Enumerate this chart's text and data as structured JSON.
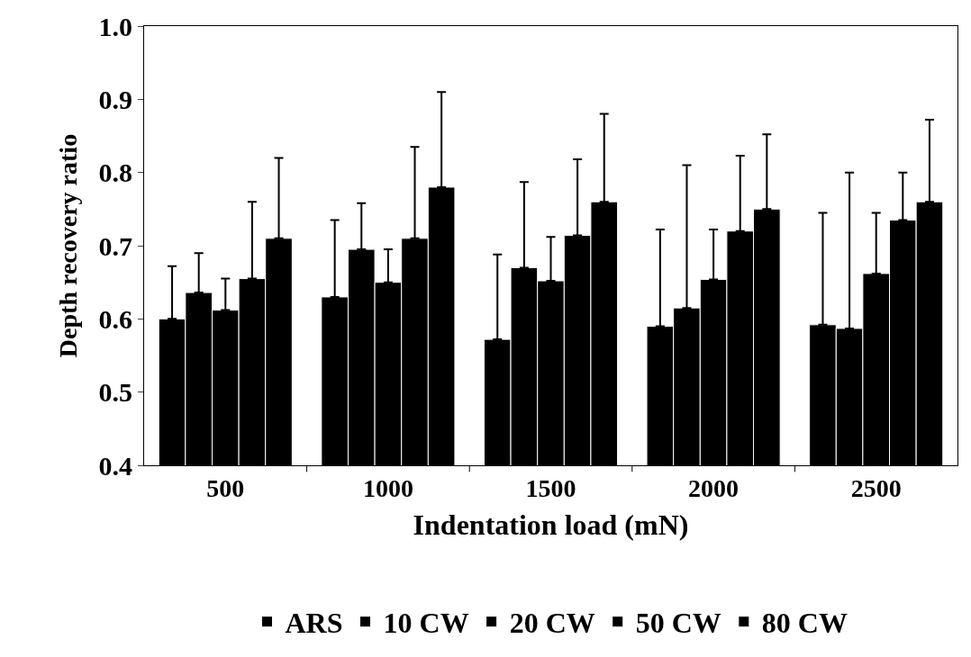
{
  "chart_data": {
    "type": "bar",
    "xlabel": "Indentation load (mN)",
    "ylabel": "Depth recovery ratio",
    "categories": [
      "500",
      "1000",
      "1500",
      "2000",
      "2500"
    ],
    "series": [
      {
        "name": "ARS",
        "color": "#000000",
        "values": [
          0.6,
          0.63,
          0.572,
          0.59,
          0.592
        ],
        "errors": [
          [
            0.6,
            0.672
          ],
          [
            0.63,
            0.735
          ],
          [
            0.572,
            0.688
          ],
          [
            0.59,
            0.722
          ],
          [
            0.592,
            0.745
          ]
        ]
      },
      {
        "name": "10 CW",
        "color": "#000000",
        "values": [
          0.636,
          0.695,
          0.67,
          0.615,
          0.587
        ],
        "errors": [
          [
            0.636,
            0.69
          ],
          [
            0.695,
            0.758
          ],
          [
            0.67,
            0.787
          ],
          [
            0.615,
            0.81
          ],
          [
            0.587,
            0.8
          ]
        ]
      },
      {
        "name": "20 CW",
        "color": "#000000",
        "values": [
          0.612,
          0.65,
          0.652,
          0.654,
          0.662
        ],
        "errors": [
          [
            0.612,
            0.655
          ],
          [
            0.65,
            0.695
          ],
          [
            0.652,
            0.712
          ],
          [
            0.654,
            0.722
          ],
          [
            0.662,
            0.745
          ]
        ]
      },
      {
        "name": "50 CW",
        "color": "#000000",
        "values": [
          0.655,
          0.71,
          0.714,
          0.72,
          0.735
        ],
        "errors": [
          [
            0.655,
            0.76
          ],
          [
            0.71,
            0.835
          ],
          [
            0.714,
            0.818
          ],
          [
            0.72,
            0.823
          ],
          [
            0.735,
            0.8
          ]
        ]
      },
      {
        "name": "80 CW",
        "color": "#000000",
        "values": [
          0.71,
          0.78,
          0.76,
          0.75,
          0.76
        ],
        "errors": [
          [
            0.71,
            0.82
          ],
          [
            0.78,
            0.91
          ],
          [
            0.76,
            0.88
          ],
          [
            0.75,
            0.852
          ],
          [
            0.76,
            0.872
          ]
        ]
      }
    ],
    "ylim": [
      0.4,
      1.0
    ],
    "yticks": [
      0.4,
      0.5,
      0.6,
      0.7,
      0.8,
      0.9,
      {
        "value": 1.0,
        "label": "1.0"
      }
    ],
    "legend": "bottom"
  }
}
